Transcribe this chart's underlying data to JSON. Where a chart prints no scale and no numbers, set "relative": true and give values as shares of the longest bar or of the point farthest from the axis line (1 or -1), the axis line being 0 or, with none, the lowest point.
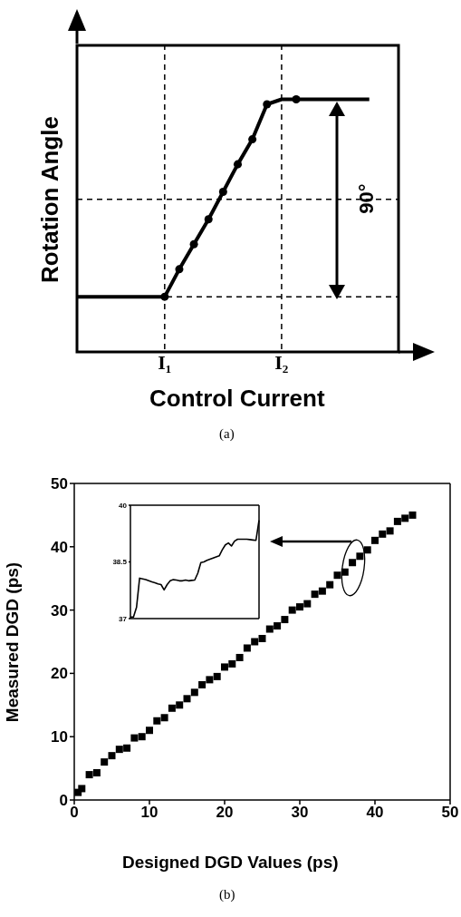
{
  "chart_data": [
    {
      "type": "line",
      "relative": true,
      "xlabel": "Control Current",
      "ylabel": "Rotation Angle",
      "tick_labels": "x",
      "categories": [
        null,
        null,
        null,
        null,
        null,
        null,
        "I₁",
        null,
        null,
        null,
        null,
        null,
        null,
        null,
        "I₂",
        null,
        null,
        null,
        null,
        null,
        null
      ],
      "series": [
        {
          "color": "#000000",
          "marker": "none",
          "values": [
            0.21,
            0.21,
            0.21,
            0.21,
            0.21,
            0.21,
            0.21,
            0.32,
            0.42,
            0.52,
            0.63,
            0.74,
            0.84,
            0.98,
            1,
            1,
            1,
            1,
            1,
            1,
            1
          ]
        },
        {
          "type": "scatter",
          "color": "#000000",
          "marker": "circle",
          "values": [
            null,
            null,
            null,
            null,
            null,
            null,
            0.21,
            0.32,
            0.42,
            0.52,
            0.63,
            0.74,
            0.84,
            0.98,
            null,
            1,
            null,
            null,
            null,
            null,
            null
          ]
        }
      ],
      "ref_lines": [
        {
          "axis": "y",
          "value": 0.21,
          "line_style": "dashed"
        },
        {
          "axis": "y",
          "value": 0.6,
          "line_style": "dashed"
        },
        {
          "axis": "x",
          "value": "I₁",
          "line_style": "dashed"
        },
        {
          "axis": "x",
          "value": "I₂",
          "line_style": "dashed"
        }
      ],
      "annotations": [
        "90°",
        "(a)"
      ]
    },
    {
      "type": "scatter",
      "xlabel": "Designed DGD Values (ps)",
      "ylabel": "Measured DGD (ps)",
      "xlim": [
        0,
        50
      ],
      "ylim": [
        0,
        50
      ],
      "xticks": [
        0,
        10,
        20,
        30,
        40,
        50
      ],
      "yticks": [
        0,
        10,
        20,
        30,
        40,
        50
      ],
      "marker": "square",
      "color": "#000000",
      "x": [
        0.5,
        1,
        2,
        3,
        4,
        5,
        6,
        7,
        8,
        9,
        10,
        11,
        12,
        13,
        14,
        15,
        16,
        17,
        18,
        19,
        20,
        21,
        22,
        23,
        24,
        25,
        26,
        27,
        28,
        29,
        30,
        31,
        32,
        33,
        34,
        35,
        36,
        37,
        38,
        39,
        40,
        41,
        42,
        43,
        44,
        45
      ],
      "values": [
        1.2,
        1.8,
        4,
        4.3,
        6,
        7,
        8,
        8.2,
        9.8,
        10,
        11,
        12.5,
        13,
        14.5,
        15,
        16,
        17,
        18.2,
        19,
        19.5,
        21,
        21.5,
        22.5,
        24,
        25,
        25.5,
        27,
        27.5,
        28.5,
        30,
        30.5,
        31,
        32.5,
        33,
        34,
        35.5,
        36,
        37.5,
        38.5,
        39.5,
        41,
        42,
        42.5,
        44,
        44.5,
        45
      ],
      "annotations": [
        "(b)"
      ]
    },
    {
      "type": "line",
      "color": "#000000",
      "tick_labels": "y",
      "ylim": [
        37,
        40
      ],
      "yticks": [
        37,
        38.5,
        40
      ],
      "categories": [
        null,
        null,
        null,
        null,
        null,
        null,
        null,
        null,
        null,
        null,
        null,
        null,
        null,
        null,
        null,
        null,
        null,
        null,
        null,
        null,
        null,
        null,
        null,
        null,
        null,
        null,
        null,
        null,
        null,
        null,
        null,
        null,
        null,
        null,
        null,
        null,
        null,
        null,
        null,
        null,
        null,
        null,
        null
      ],
      "values": [
        37.04,
        37.04,
        37.3,
        38.07,
        38.05,
        38.03,
        38.0,
        37.97,
        37.95,
        37.92,
        37.9,
        37.76,
        37.9,
        38.0,
        38.03,
        38.02,
        38.0,
        38.0,
        38.02,
        38.0,
        38.01,
        38.02,
        38.2,
        38.48,
        38.5,
        38.54,
        38.57,
        38.6,
        38.63,
        38.66,
        38.82,
        38.95,
        39.0,
        38.92,
        39.05,
        39.1,
        39.1,
        39.1,
        39.1,
        39.09,
        39.08,
        39.07,
        39.6
      ]
    }
  ]
}
